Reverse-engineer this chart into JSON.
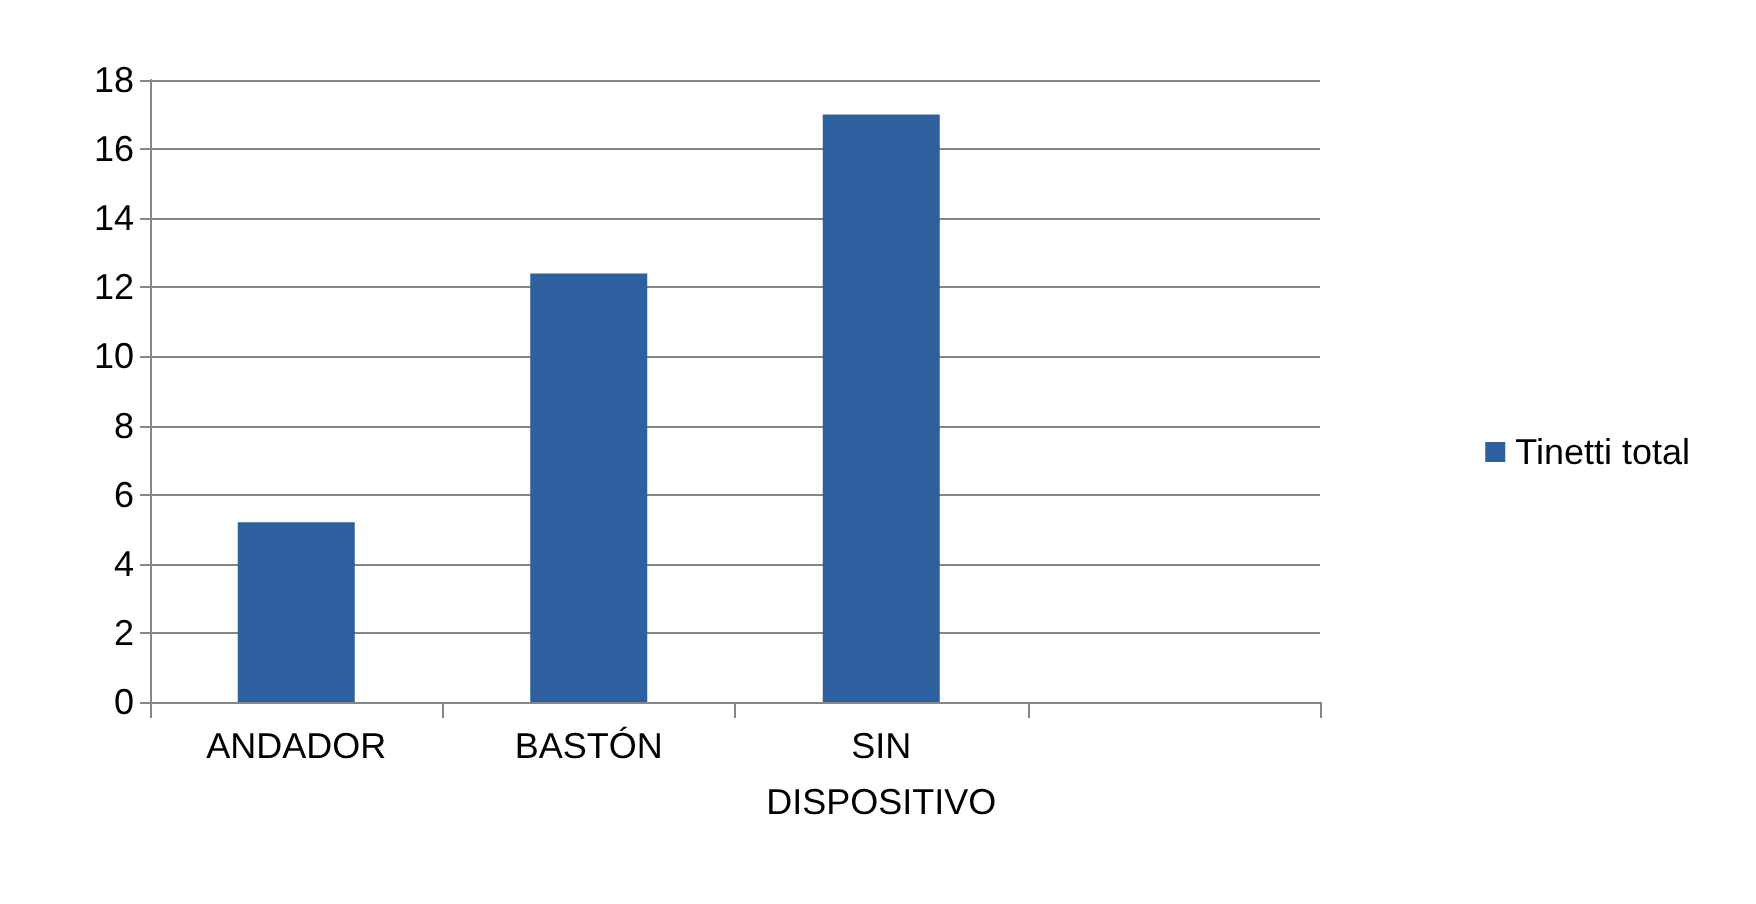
{
  "chart_data": {
    "type": "bar",
    "categories": [
      "ANDADOR",
      "BASTÓN",
      "SIN\nDISPOSITIVO",
      null
    ],
    "series": [
      {
        "name": "Tinetti total",
        "color": "#2e5f9e",
        "values": [
          5.2,
          12.4,
          17,
          null
        ]
      }
    ],
    "ylim": [
      0,
      18
    ],
    "yticks": [
      0,
      2,
      4,
      6,
      8,
      10,
      12,
      14,
      16,
      18
    ],
    "grid": "y",
    "legend": "right"
  }
}
